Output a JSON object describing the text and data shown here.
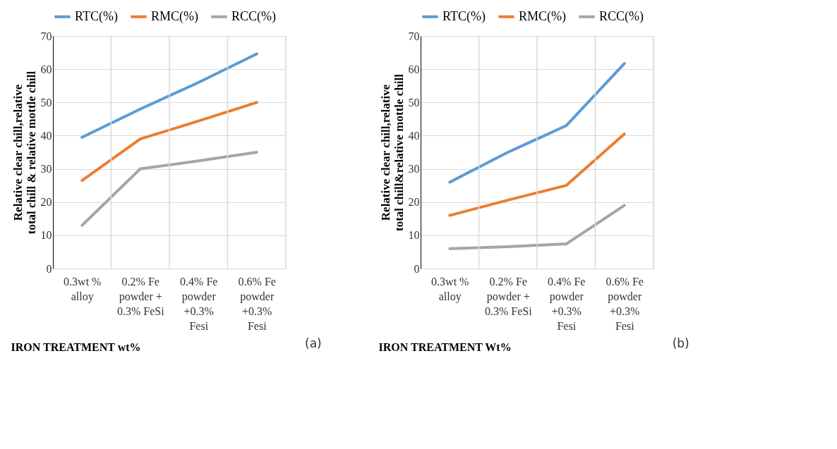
{
  "chart_data": [
    {
      "type": "line",
      "xlabel": "IRON TREATMENT wt%",
      "ylabel": "Relative clear chill,relative total chill & relative mottle chill",
      "categories": [
        "0.3wt %\nalloy",
        "0.2% Fe\npowder +\n0.3% FeSi",
        "0.4% Fe\npowder\n+0.3%\nFesi",
        "0.6% Fe\npowder\n+0.3%\nFesi"
      ],
      "series": [
        {
          "name": "RTC(%)",
          "color": "#5b9bd5",
          "values": [
            39.5,
            48,
            56,
            64.6
          ]
        },
        {
          "name": "RMC(%)",
          "color": "#ed7d31",
          "values": [
            26.5,
            39,
            44.4,
            50
          ]
        },
        {
          "name": "RCC(%)",
          "color": "#a5a5a5",
          "values": [
            13,
            30,
            32.4,
            35
          ]
        }
      ],
      "ylim": [
        0,
        70
      ],
      "yticks": [
        0,
        10,
        20,
        30,
        40,
        50,
        60,
        70
      ],
      "grid": true,
      "legend": "top",
      "marker": "none",
      "line_style": "solid",
      "annotations": [
        "(a)"
      ]
    },
    {
      "type": "line",
      "xlabel": "IRON TREATMENT Wt%",
      "ylabel": "Relative clear chill,relative total chill&relative mottle chill",
      "categories": [
        "0.3wt %\nalloy",
        "0.2% Fe\npowder +\n0.3% FeSi",
        "0.4% Fe\npowder\n+0.3%\nFesi",
        "0.6% Fe\npowder\n+0.3%\nFesi"
      ],
      "series": [
        {
          "name": "RTC(%)",
          "color": "#5b9bd5",
          "values": [
            26,
            35,
            43,
            61.7
          ]
        },
        {
          "name": "RMC(%)",
          "color": "#ed7d31",
          "values": [
            16,
            20.6,
            25,
            40.5
          ]
        },
        {
          "name": "RCC(%)",
          "color": "#a5a5a5",
          "values": [
            6,
            6.6,
            7.4,
            19
          ]
        }
      ],
      "ylim": [
        0,
        70
      ],
      "yticks": [
        0,
        10,
        20,
        30,
        40,
        50,
        60,
        70
      ],
      "grid": true,
      "legend": "top",
      "marker": "none",
      "line_style": "solid",
      "annotations": [
        "(b)"
      ]
    }
  ]
}
